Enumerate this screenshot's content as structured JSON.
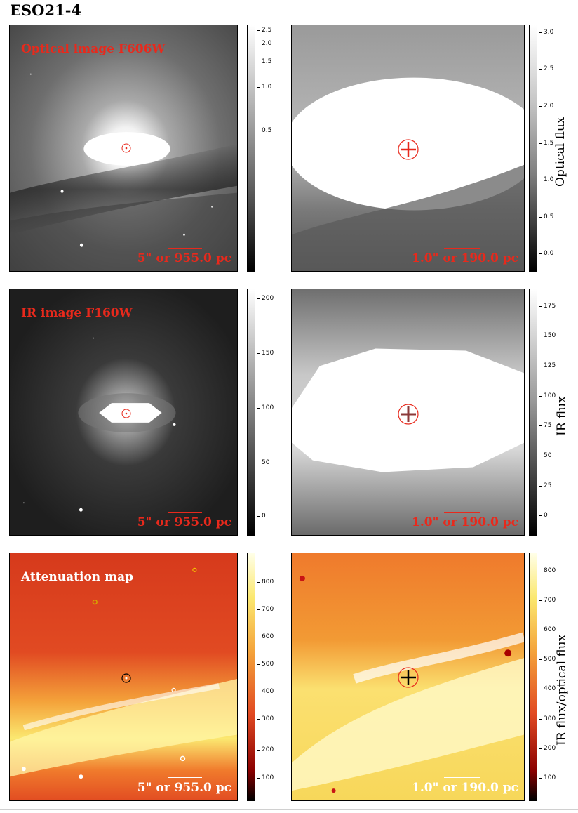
{
  "figure_title": "ESO21-4",
  "rows": [
    {
      "left_label": "Optical image F606W",
      "left_scalebar": "5\" or 955.0 pc",
      "right_scalebar": "1.0\" or 190.0 pc",
      "left_ticks": [
        "2.5",
        "2.0",
        "1.5",
        "1.0",
        "0.5"
      ],
      "right_ticks": [
        "3.0",
        "2.5",
        "2.0",
        "1.5",
        "1.0",
        "0.5",
        "0.0"
      ],
      "right_colorbar_label": "Optical flux"
    },
    {
      "left_label": "IR image F160W",
      "left_scalebar": "5\" or 955.0 pc",
      "right_scalebar": "1.0\" or 190.0 pc",
      "left_ticks": [
        "200",
        "150",
        "100",
        "50",
        "0"
      ],
      "right_ticks": [
        "175",
        "150",
        "125",
        "100",
        "75",
        "50",
        "25",
        "0"
      ],
      "right_colorbar_label": "IR flux"
    },
    {
      "left_label": "Attenuation map",
      "left_scalebar": "5\" or 955.0 pc",
      "right_scalebar": "1.0\" or 190.0 pc",
      "left_ticks": [
        "800",
        "700",
        "600",
        "500",
        "400",
        "300",
        "200",
        "100"
      ],
      "right_ticks": [
        "800",
        "700",
        "600",
        "500",
        "400",
        "300",
        "200",
        "100"
      ],
      "right_colorbar_label": "IR flux/optical flux"
    }
  ],
  "colors": {
    "annotation_red": "#e8291c",
    "annotation_white": "#ffffff",
    "marker_black": "#000000"
  }
}
